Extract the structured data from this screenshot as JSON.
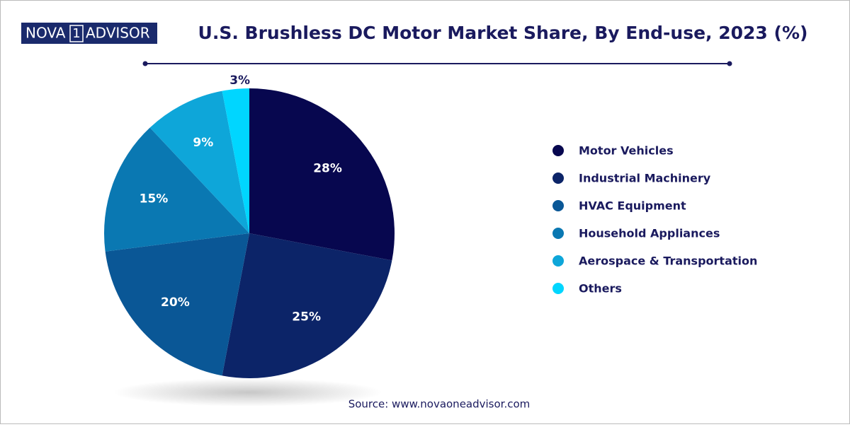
{
  "logo": {
    "left": "NOVA",
    "mark": "1",
    "right": "ADVISOR"
  },
  "chart_data": {
    "type": "pie",
    "title": "U.S. Brushless DC Motor Market Share, By End-use, 2023 (%)",
    "source": "Source: www.novaoneadvisor.com",
    "categories": [
      "Motor Vehicles",
      "Industrial Machinery",
      "HVAC Equipment",
      "Household Appliances",
      "Aerospace & Transportation",
      "Others"
    ],
    "values": [
      28,
      25,
      20,
      15,
      9,
      3
    ],
    "value_labels": [
      "28%",
      "25%",
      "20%",
      "15%",
      "9%",
      "3%"
    ],
    "colors": [
      "#07074f",
      "#0c2468",
      "#0a5796",
      "#0a78b2",
      "#0ea6d9",
      "#00d6ff"
    ],
    "legend": "right"
  }
}
